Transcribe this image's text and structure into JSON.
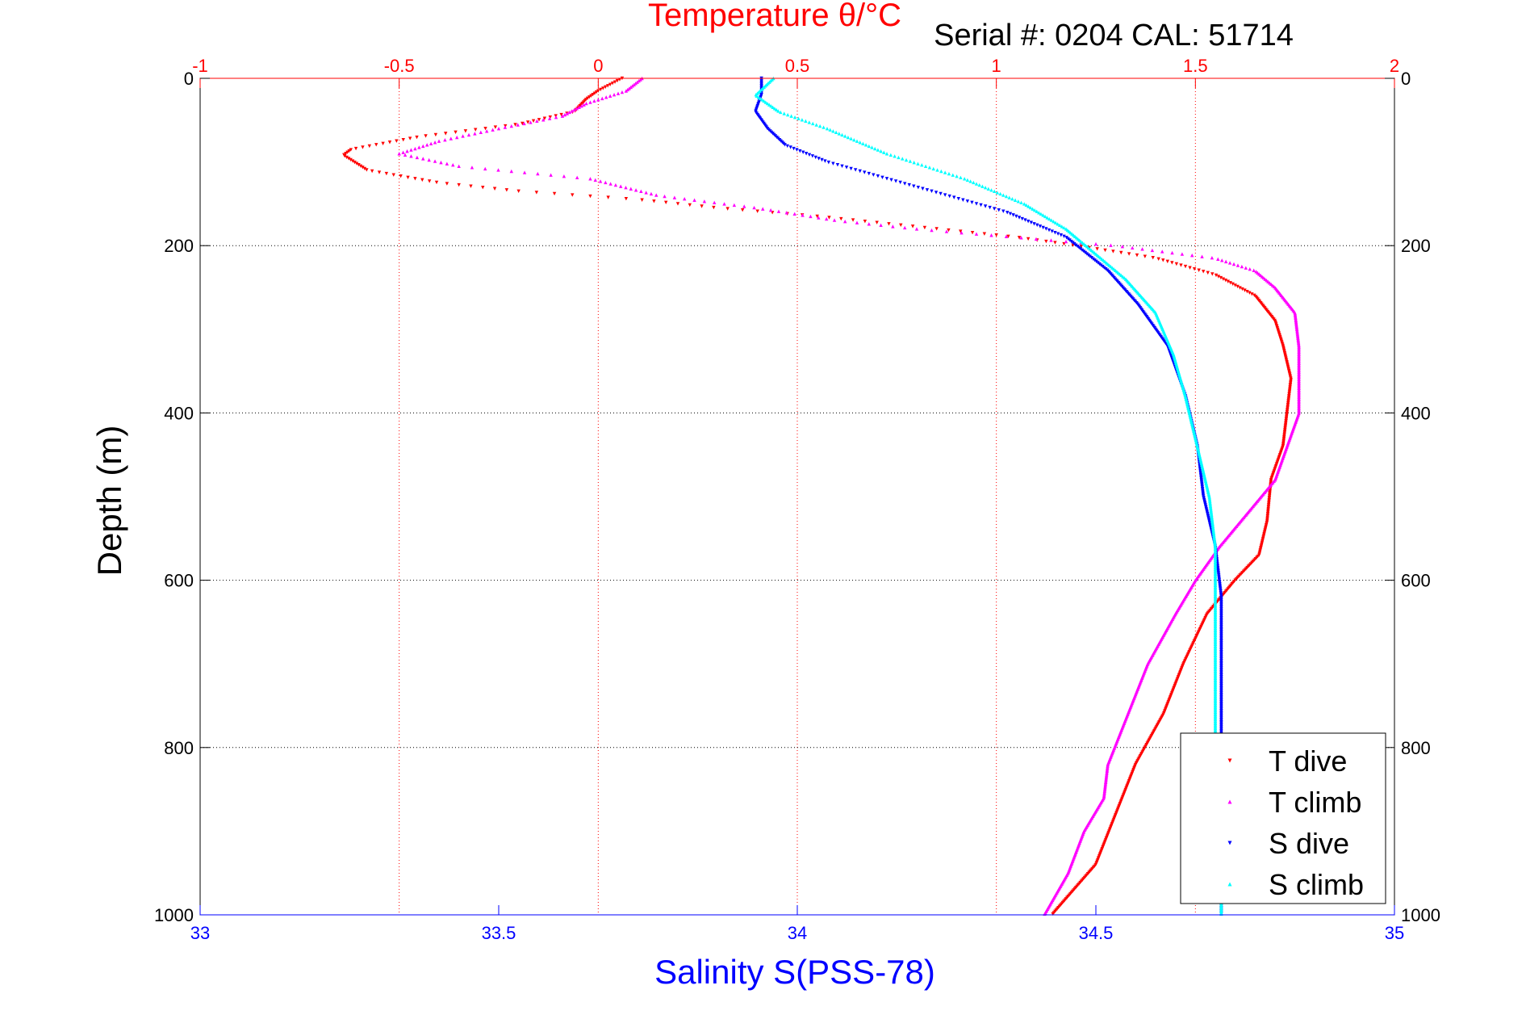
{
  "chart_data": {
    "type": "scatter",
    "title_top": "Temperature θ/°C",
    "subtitle": "Serial #: 0204   CAL: 51714",
    "xlabel_bottom": "Salinity S(PSS-78)",
    "ylabel": "Depth (m)",
    "x_top_range": [
      -1,
      2
    ],
    "x_top_ticks": [
      "-1",
      "-0.5",
      "0",
      "0.5",
      "1",
      "1.5",
      "2"
    ],
    "x_bottom_range": [
      33,
      35
    ],
    "x_bottom_ticks": [
      "33",
      "33.5",
      "34",
      "34.5",
      "35"
    ],
    "y_range": [
      0,
      1000
    ],
    "y_reversed": true,
    "y_ticks": [
      "0",
      "200",
      "400",
      "600",
      "800",
      "1000"
    ],
    "grid": true,
    "legend_position": "bottom-right",
    "colors": {
      "temperature_axis": "#ff0000",
      "salinity_axis": "#0000ff",
      "t_dive": "#ff0000",
      "t_climb": "#ff00ff",
      "s_dive": "#0000ff",
      "s_climb": "#00ffff"
    },
    "series": [
      {
        "name": "T dive",
        "axis": "temperature",
        "marker": "triangle-down",
        "points": [
          [
            0,
            0.06
          ],
          [
            15,
            0.0
          ],
          [
            25,
            -0.03
          ],
          [
            40,
            -0.06
          ],
          [
            55,
            -0.2
          ],
          [
            70,
            -0.45
          ],
          [
            85,
            -0.62
          ],
          [
            92,
            -0.64
          ],
          [
            110,
            -0.58
          ],
          [
            125,
            -0.4
          ],
          [
            135,
            -0.2
          ],
          [
            145,
            0.1
          ],
          [
            155,
            0.3
          ],
          [
            165,
            0.55
          ],
          [
            180,
            0.85
          ],
          [
            190,
            1.05
          ],
          [
            200,
            1.2
          ],
          [
            215,
            1.4
          ],
          [
            235,
            1.55
          ],
          [
            260,
            1.65
          ],
          [
            290,
            1.7
          ],
          [
            320,
            1.72
          ],
          [
            360,
            1.74
          ],
          [
            400,
            1.73
          ],
          [
            440,
            1.72
          ],
          [
            480,
            1.69
          ],
          [
            530,
            1.68
          ],
          [
            570,
            1.66
          ],
          [
            600,
            1.6
          ],
          [
            640,
            1.53
          ],
          [
            700,
            1.47
          ],
          [
            760,
            1.42
          ],
          [
            820,
            1.35
          ],
          [
            880,
            1.3
          ],
          [
            940,
            1.25
          ],
          [
            1000,
            1.14
          ]
        ]
      },
      {
        "name": "T climb",
        "axis": "temperature",
        "marker": "triangle-up",
        "points": [
          [
            0,
            0.11
          ],
          [
            15,
            0.07
          ],
          [
            30,
            -0.03
          ],
          [
            45,
            -0.09
          ],
          [
            60,
            -0.25
          ],
          [
            75,
            -0.4
          ],
          [
            90,
            -0.5
          ],
          [
            105,
            -0.35
          ],
          [
            120,
            -0.02
          ],
          [
            140,
            0.15
          ],
          [
            155,
            0.4
          ],
          [
            170,
            0.6
          ],
          [
            180,
            0.8
          ],
          [
            190,
            1.05
          ],
          [
            200,
            1.3
          ],
          [
            215,
            1.55
          ],
          [
            230,
            1.65
          ],
          [
            250,
            1.7
          ],
          [
            280,
            1.75
          ],
          [
            320,
            1.76
          ],
          [
            360,
            1.76
          ],
          [
            400,
            1.76
          ],
          [
            440,
            1.73
          ],
          [
            480,
            1.7
          ],
          [
            520,
            1.63
          ],
          [
            560,
            1.56
          ],
          [
            600,
            1.5
          ],
          [
            640,
            1.45
          ],
          [
            700,
            1.38
          ],
          [
            760,
            1.33
          ],
          [
            820,
            1.28
          ],
          [
            860,
            1.27
          ],
          [
            900,
            1.22
          ],
          [
            950,
            1.18
          ],
          [
            1000,
            1.12
          ]
        ]
      },
      {
        "name": "S dive",
        "axis": "salinity",
        "marker": "triangle-down",
        "points": [
          [
            0,
            33.94
          ],
          [
            20,
            33.94
          ],
          [
            40,
            33.93
          ],
          [
            60,
            33.95
          ],
          [
            80,
            33.98
          ],
          [
            100,
            34.05
          ],
          [
            130,
            34.2
          ],
          [
            160,
            34.35
          ],
          [
            190,
            34.45
          ],
          [
            230,
            34.52
          ],
          [
            270,
            34.57
          ],
          [
            320,
            34.62
          ],
          [
            380,
            34.65
          ],
          [
            440,
            34.67
          ],
          [
            500,
            34.68
          ],
          [
            560,
            34.7
          ],
          [
            620,
            34.71
          ],
          [
            700,
            34.71
          ],
          [
            800,
            34.71
          ],
          [
            900,
            34.71
          ],
          [
            1000,
            34.71
          ]
        ]
      },
      {
        "name": "S climb",
        "axis": "salinity",
        "marker": "triangle-up",
        "points": [
          [
            0,
            33.96
          ],
          [
            20,
            33.93
          ],
          [
            40,
            33.97
          ],
          [
            60,
            34.05
          ],
          [
            90,
            34.15
          ],
          [
            120,
            34.28
          ],
          [
            150,
            34.38
          ],
          [
            180,
            34.45
          ],
          [
            210,
            34.5
          ],
          [
            240,
            34.55
          ],
          [
            280,
            34.6
          ],
          [
            330,
            34.63
          ],
          [
            380,
            34.65
          ],
          [
            440,
            34.67
          ],
          [
            500,
            34.69
          ],
          [
            560,
            34.7
          ],
          [
            620,
            34.7
          ],
          [
            700,
            34.7
          ],
          [
            800,
            34.7
          ],
          [
            900,
            34.71
          ],
          [
            1000,
            34.71
          ]
        ]
      }
    ]
  }
}
